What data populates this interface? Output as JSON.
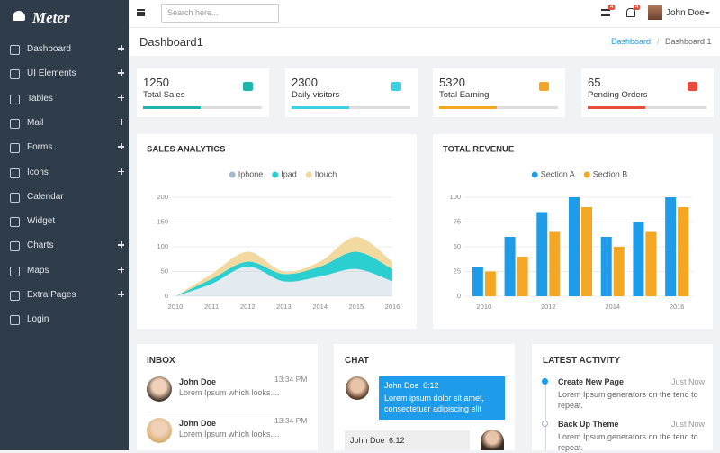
{
  "sidebar": {
    "logo": "Meter",
    "menu": [
      {
        "label": "Dashboard",
        "expandable": true
      },
      {
        "label": "UI Elements",
        "expandable": true
      },
      {
        "label": "Tables",
        "expandable": true
      },
      {
        "label": "Mail",
        "expandable": true
      },
      {
        "label": "Forms",
        "expandable": true
      },
      {
        "label": "Icons",
        "expandable": true
      },
      {
        "label": "Calendar",
        "expandable": false
      },
      {
        "label": "Widget",
        "expandable": false
      },
      {
        "label": "Charts",
        "expandable": true
      },
      {
        "label": "Maps",
        "expandable": true
      },
      {
        "label": "Extra Pages",
        "expandable": true
      },
      {
        "label": "Login",
        "expandable": false
      }
    ]
  },
  "topbar": {
    "search_placeholder": "Search here...",
    "badges": [
      "4",
      "4"
    ],
    "user": "John Doe"
  },
  "header": {
    "title": "Dashboard1",
    "breadcrumb": [
      "Dashboard",
      "Dashboard 1"
    ]
  },
  "stats": [
    {
      "value": 1250,
      "label": "Total Sales",
      "color": "#1fb5ac"
    },
    {
      "value": 2300,
      "label": "Daily visitors",
      "color": "#3dd1e6"
    },
    {
      "value": 5320,
      "label": "Total Earning",
      "color": "#f5a623"
    },
    {
      "value": 65,
      "label": "Pending Orders",
      "color": "#e74c3c"
    }
  ],
  "chart_data": [
    {
      "type": "area",
      "title": "SALES ANALYTICS",
      "x": [
        2010,
        2011,
        2012,
        2013,
        2014,
        2015,
        2016
      ],
      "xlim": [
        2010,
        2016
      ],
      "xticks": [
        2010,
        2011,
        2012,
        2013,
        2014,
        2015,
        2016
      ],
      "ylim": [
        0,
        200
      ],
      "yticks": [
        0,
        50,
        100,
        150,
        200
      ],
      "stacked": true,
      "grid": true,
      "series": [
        {
          "name": "Iphone",
          "color": "#a3b8cc",
          "values": [
            0,
            25,
            60,
            30,
            40,
            55,
            30
          ]
        },
        {
          "name": "Ipad",
          "color": "#2ccfcf",
          "values": [
            0,
            10,
            10,
            15,
            20,
            35,
            25
          ]
        },
        {
          "name": "Itouch",
          "color": "#f2d9a0",
          "values": [
            0,
            10,
            20,
            5,
            10,
            30,
            15
          ]
        }
      ]
    },
    {
      "type": "bar",
      "title": "TOTAL REVENUE",
      "categories": [
        "2010",
        null,
        "2012",
        null,
        "2014",
        null,
        "2016"
      ],
      "ylim": [
        0,
        100
      ],
      "yticks": [
        0,
        25,
        50,
        75,
        100
      ],
      "grid": true,
      "series": [
        {
          "name": "Section A",
          "color": "#1e9be9",
          "values": [
            30,
            60,
            85,
            100,
            60,
            75,
            100
          ]
        },
        {
          "name": "Section B",
          "color": "#f5a623",
          "values": [
            25,
            40,
            65,
            90,
            50,
            65,
            90
          ]
        }
      ]
    }
  ],
  "inbox": {
    "title": "INBOX",
    "messages": [
      {
        "name": "John Doe",
        "time": "13:34 PM",
        "text": "Lorem Ipsum which looks...."
      },
      {
        "name": "John Doe",
        "time": "13:34 PM",
        "text": "Lorem Ipsum which looks...."
      }
    ]
  },
  "chat": {
    "title": "CHAT",
    "messages": [
      {
        "name": "John Doe",
        "time": "6:12",
        "text": "Lorem ipsum dolor sit amet, consectetuer adipiscing elit"
      },
      {
        "name": "John Doe",
        "time": "6:12"
      }
    ]
  },
  "activity": {
    "title": "LATEST ACTIVITY",
    "items": [
      {
        "title": "Create New Page",
        "time": "Just Now",
        "text": "Lorem Ipsum generators on the tend to repeat."
      },
      {
        "title": "Back Up Theme",
        "time": "Just Now",
        "text": "Lorem Ipsum generators on the tend to repeat."
      }
    ]
  }
}
